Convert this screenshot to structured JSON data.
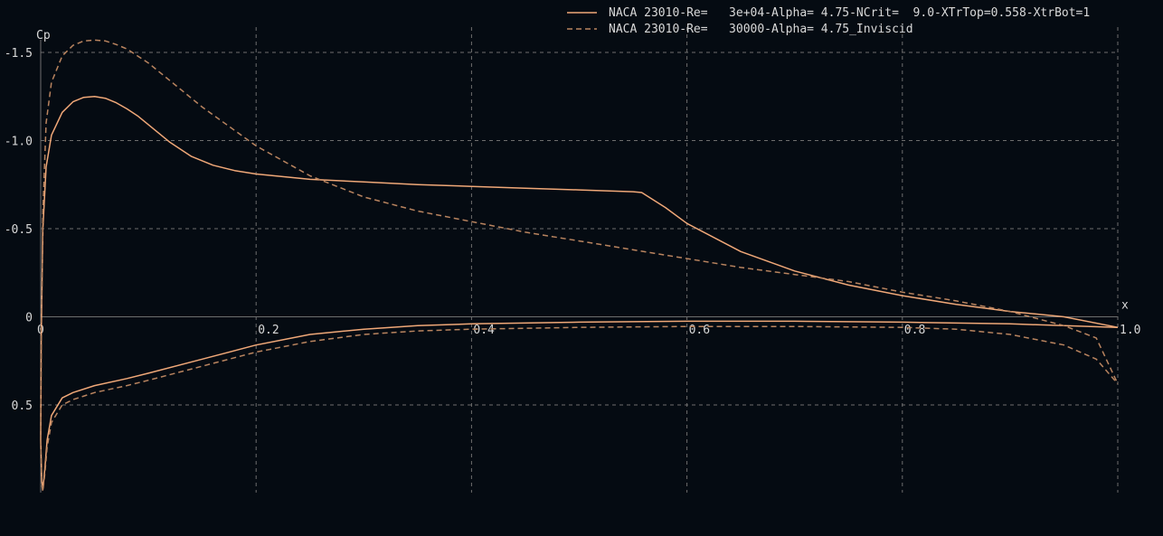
{
  "chart_data": {
    "type": "line",
    "xlabel": "x",
    "ylabel": "Cp",
    "xlim": [
      0,
      1.0
    ],
    "ylim": [
      -1.5,
      0.5
    ],
    "y_inverted": true,
    "grid": true,
    "legend_position": "top-right",
    "x_ticks": [
      0,
      0.2,
      0.4,
      0.6,
      0.8,
      1.0
    ],
    "x_tick_labels": [
      "0",
      "0.2",
      "0.4",
      "0.6",
      "0.8",
      "1.0"
    ],
    "y_ticks": [
      -1.5,
      -1.0,
      -0.5,
      0,
      0.5
    ],
    "y_tick_labels": [
      "-1.5",
      "-1.0",
      "-0.5",
      "0",
      "0.5"
    ],
    "series": [
      {
        "name": "NACA 23010-Re=   3e+04-Alpha= 4.75-NCrit=  9.0-XTrTop=0.558-XtrBot=1",
        "style": "solid",
        "color": "#f0a878",
        "upper": {
          "x": [
            0,
            0.0005,
            0.002,
            0.005,
            0.01,
            0.02,
            0.03,
            0.04,
            0.05,
            0.06,
            0.07,
            0.08,
            0.09,
            0.1,
            0.12,
            0.14,
            0.16,
            0.18,
            0.2,
            0.25,
            0.3,
            0.35,
            0.4,
            0.45,
            0.5,
            0.55,
            0.558,
            0.58,
            0.6,
            0.65,
            0.7,
            0.75,
            0.8,
            0.85,
            0.9,
            0.95,
            1.0
          ],
          "y": [
            0.7,
            0.1,
            -0.5,
            -0.85,
            -1.03,
            -1.16,
            -1.22,
            -1.245,
            -1.25,
            -1.24,
            -1.215,
            -1.18,
            -1.14,
            -1.09,
            -0.99,
            -0.91,
            -0.86,
            -0.83,
            -0.81,
            -0.78,
            -0.765,
            -0.75,
            -0.74,
            -0.73,
            -0.72,
            -0.71,
            -0.705,
            -0.62,
            -0.53,
            -0.37,
            -0.26,
            -0.18,
            -0.12,
            -0.07,
            -0.03,
            0.0,
            0.06
          ]
        },
        "lower": {
          "x": [
            0,
            0.001,
            0.002,
            0.004,
            0.006,
            0.01,
            0.02,
            0.03,
            0.05,
            0.08,
            0.1,
            0.15,
            0.2,
            0.25,
            0.3,
            0.35,
            0.4,
            0.5,
            0.6,
            0.7,
            0.8,
            0.9,
            0.95,
            1.0
          ],
          "y": [
            0.7,
            0.93,
            0.98,
            0.85,
            0.7,
            0.56,
            0.46,
            0.43,
            0.39,
            0.35,
            0.32,
            0.24,
            0.16,
            0.1,
            0.07,
            0.05,
            0.04,
            0.03,
            0.025,
            0.025,
            0.03,
            0.04,
            0.05,
            0.06
          ]
        }
      },
      {
        "name": "NACA 23010-Re=   30000-Alpha= 4.75_Inviscid",
        "style": "dashed",
        "color": "#b9845f",
        "upper": {
          "x": [
            0,
            0.0005,
            0.002,
            0.005,
            0.01,
            0.02,
            0.03,
            0.04,
            0.05,
            0.06,
            0.07,
            0.08,
            0.1,
            0.12,
            0.15,
            0.2,
            0.25,
            0.3,
            0.35,
            0.4,
            0.45,
            0.5,
            0.55,
            0.6,
            0.65,
            0.7,
            0.75,
            0.8,
            0.85,
            0.9,
            0.95,
            0.98,
            1.0
          ],
          "y": [
            0.7,
            0.2,
            -0.6,
            -1.1,
            -1.33,
            -1.48,
            -1.54,
            -1.565,
            -1.57,
            -1.565,
            -1.545,
            -1.52,
            -1.44,
            -1.34,
            -1.19,
            -0.97,
            -0.8,
            -0.68,
            -0.6,
            -0.54,
            -0.48,
            -0.43,
            -0.38,
            -0.33,
            -0.28,
            -0.24,
            -0.2,
            -0.14,
            -0.09,
            -0.03,
            0.05,
            0.12,
            0.38
          ]
        },
        "lower": {
          "x": [
            0,
            0.001,
            0.002,
            0.004,
            0.006,
            0.01,
            0.02,
            0.03,
            0.05,
            0.08,
            0.1,
            0.15,
            0.2,
            0.25,
            0.3,
            0.35,
            0.4,
            0.5,
            0.6,
            0.7,
            0.8,
            0.85,
            0.9,
            0.95,
            0.98,
            1.0
          ],
          "y": [
            0.7,
            0.95,
            0.99,
            0.88,
            0.74,
            0.6,
            0.5,
            0.47,
            0.43,
            0.39,
            0.36,
            0.28,
            0.2,
            0.14,
            0.1,
            0.08,
            0.07,
            0.06,
            0.055,
            0.055,
            0.06,
            0.07,
            0.1,
            0.16,
            0.24,
            0.38
          ]
        }
      }
    ]
  }
}
